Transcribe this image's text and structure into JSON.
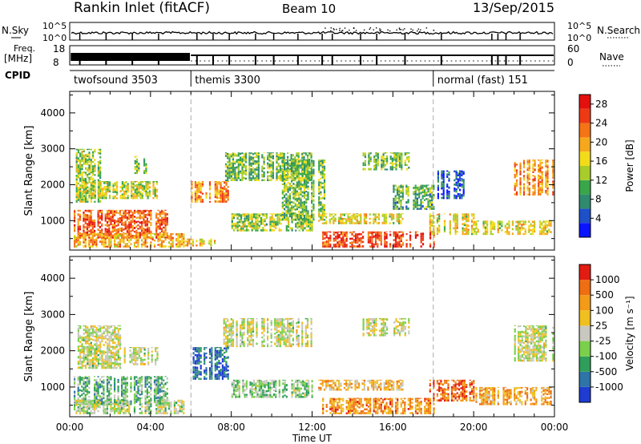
{
  "header": {
    "title": "Rankin Inlet (fitACF)",
    "beam": "Beam 10",
    "date": "13/Sep/2015"
  },
  "top_panels": {
    "nsky_label": "N.Sky",
    "nsky_ticks": [
      "10^5",
      "10^0"
    ],
    "nsearch_label": "N.Search",
    "nsearch_ticks": [
      "10^5",
      "10^0"
    ],
    "freq_label": "Freq.",
    "freq_unit": "[MHz]",
    "freq_ticks": [
      "18",
      "8"
    ],
    "nave_label": "Nave",
    "nave_ticks": [
      "60",
      "0"
    ],
    "cpid_label": "CPID",
    "cpid_segments": [
      {
        "label": "twofsound 3503",
        "start_hour": 0
      },
      {
        "label": "themis 3300",
        "start_hour": 6
      },
      {
        "label": "normal (fast) 151",
        "start_hour": 18
      }
    ]
  },
  "chart_data": [
    {
      "type": "heatmap",
      "name": "power",
      "ylabel": "Slant Range [km]",
      "yticks": [
        1000,
        2000,
        3000,
        4000
      ],
      "ylim": [
        180,
        4600
      ],
      "xlim": [
        0,
        24
      ],
      "colorbar": {
        "label": "Power [dB]",
        "ticks": [
          "4",
          "8",
          "12",
          "16",
          "20",
          "24",
          "28"
        ],
        "colors": [
          "#0a14ff",
          "#1e50c8",
          "#2f8a6e",
          "#3aa64a",
          "#a8cc2a",
          "#f2dc1a",
          "#f6a81c",
          "#f47416",
          "#ee3a14",
          "#e4100e"
        ]
      },
      "regions": [
        {
          "x0": 0.2,
          "x1": 4.8,
          "y0": 500,
          "y1": 1300,
          "level": 0.8
        },
        {
          "x0": 0.2,
          "x1": 5.8,
          "y0": 250,
          "y1": 650,
          "level": 0.65
        },
        {
          "x0": 0.3,
          "x1": 1.5,
          "y0": 1500,
          "y1": 3000,
          "level": 0.45
        },
        {
          "x0": 0.5,
          "x1": 4.3,
          "y0": 1600,
          "y1": 2100,
          "level": 0.5
        },
        {
          "x0": 3.2,
          "x1": 3.8,
          "y0": 2300,
          "y1": 2800,
          "level": 0.45
        },
        {
          "x0": 6.0,
          "x1": 7.8,
          "y0": 1500,
          "y1": 2100,
          "level": 0.7
        },
        {
          "x0": 5.7,
          "x1": 7.2,
          "y0": 280,
          "y1": 500,
          "level": 0.6
        },
        {
          "x0": 7.6,
          "x1": 12.0,
          "y0": 2100,
          "y1": 2900,
          "level": 0.4
        },
        {
          "x0": 8.0,
          "x1": 12.0,
          "y0": 700,
          "y1": 1200,
          "level": 0.45
        },
        {
          "x0": 10.5,
          "x1": 12.6,
          "y0": 1000,
          "y1": 2700,
          "level": 0.4
        },
        {
          "x0": 12.3,
          "x1": 16.5,
          "y0": 900,
          "y1": 1200,
          "level": 0.55
        },
        {
          "x0": 12.5,
          "x1": 18.0,
          "y0": 250,
          "y1": 700,
          "level": 0.85
        },
        {
          "x0": 14.5,
          "x1": 16.8,
          "y0": 2400,
          "y1": 2900,
          "level": 0.4
        },
        {
          "x0": 16.0,
          "x1": 18.0,
          "y0": 1300,
          "y1": 2000,
          "level": 0.35
        },
        {
          "x0": 17.8,
          "x1": 20.0,
          "y0": 600,
          "y1": 1200,
          "level": 0.55
        },
        {
          "x0": 20.0,
          "x1": 23.8,
          "y0": 600,
          "y1": 1000,
          "level": 0.55
        },
        {
          "x0": 22.0,
          "x1": 23.9,
          "y0": 1700,
          "y1": 2700,
          "level": 0.7
        },
        {
          "x0": 18.2,
          "x1": 19.5,
          "y0": 1600,
          "y1": 2400,
          "level": 0.15
        }
      ]
    },
    {
      "type": "heatmap",
      "name": "velocity",
      "ylabel": "Slant Range [km]",
      "yticks": [
        1000,
        2000,
        3000,
        4000
      ],
      "ylim": [
        180,
        4600
      ],
      "xlim": [
        0,
        24
      ],
      "xticks": [
        "00:00",
        "04:00",
        "08:00",
        "12:00",
        "16:00",
        "20:00",
        "00:00"
      ],
      "xlabel": "Time UT",
      "colorbar": {
        "label": "Velocity [m s⁻¹]",
        "ticks": [
          "1000",
          "500",
          "100",
          "25",
          "-25",
          "-100",
          "-500",
          "-1000"
        ],
        "colors": [
          "#1e3cd2",
          "#2e74a8",
          "#2f9e5a",
          "#7ad04a",
          "#c8c8c0",
          "#f0c020",
          "#f39a18",
          "#ef6e12",
          "#e21c12"
        ]
      },
      "regions": [
        {
          "x0": 0.2,
          "x1": 4.8,
          "y0": 500,
          "y1": 1300,
          "level": 0.35
        },
        {
          "x0": 0.2,
          "x1": 5.8,
          "y0": 250,
          "y1": 650,
          "level": 0.45
        },
        {
          "x0": 0.3,
          "x1": 2.5,
          "y0": 1500,
          "y1": 2700,
          "level": 0.5
        },
        {
          "x0": 2.5,
          "x1": 4.3,
          "y0": 1600,
          "y1": 2100,
          "level": 0.5
        },
        {
          "x0": 6.0,
          "x1": 7.8,
          "y0": 1200,
          "y1": 2100,
          "level": 0.15
        },
        {
          "x0": 7.6,
          "x1": 12.0,
          "y0": 2100,
          "y1": 2900,
          "level": 0.5
        },
        {
          "x0": 8.0,
          "x1": 12.0,
          "y0": 700,
          "y1": 1200,
          "level": 0.4
        },
        {
          "x0": 12.3,
          "x1": 16.5,
          "y0": 900,
          "y1": 1200,
          "level": 0.65
        },
        {
          "x0": 12.5,
          "x1": 18.0,
          "y0": 250,
          "y1": 700,
          "level": 0.75
        },
        {
          "x0": 14.5,
          "x1": 16.8,
          "y0": 2400,
          "y1": 2900,
          "level": 0.5
        },
        {
          "x0": 17.8,
          "x1": 20.0,
          "y0": 600,
          "y1": 1200,
          "level": 0.85
        },
        {
          "x0": 20.0,
          "x1": 23.8,
          "y0": 500,
          "y1": 1000,
          "level": 0.7
        },
        {
          "x0": 22.0,
          "x1": 23.9,
          "y0": 1700,
          "y1": 2700,
          "level": 0.5
        }
      ]
    }
  ]
}
